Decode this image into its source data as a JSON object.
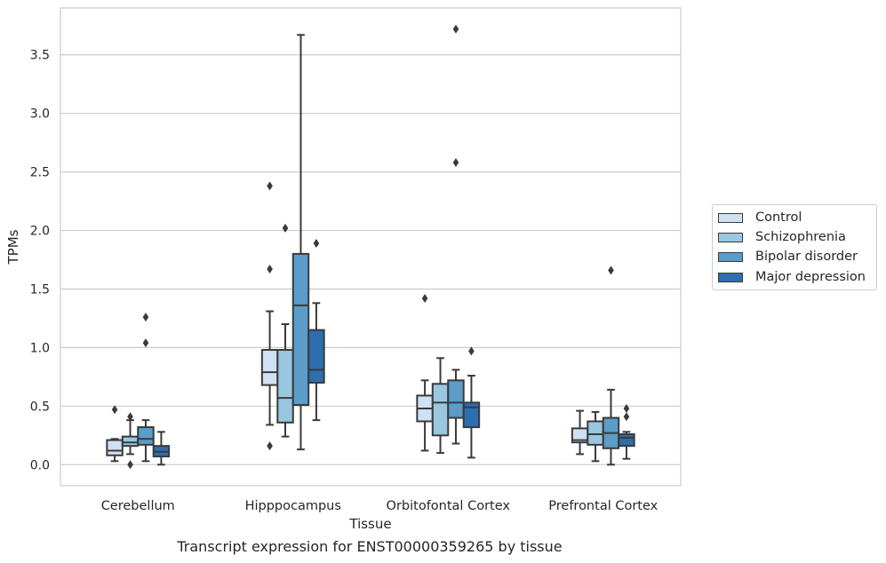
{
  "caption": "Transcript expression for ENST00000359265 by tissue",
  "chart_data": {
    "type": "box",
    "xlabel": "Tissue",
    "ylabel": "TPMs",
    "ylim": [
      -0.18,
      3.9
    ],
    "yticks": [
      "0.0",
      "0.5",
      "1.0",
      "1.5",
      "2.0",
      "2.5",
      "3.0",
      "3.5"
    ],
    "grid": "horizontal",
    "legend_placement": "outside-right",
    "categories": [
      "Cerebellum",
      "Hipppocampus",
      "Orbitofontal Cortex",
      "Prefrontal Cortex"
    ],
    "series": [
      {
        "name": "Control",
        "color": "#cfe1f2",
        "boxes": [
          {
            "whisker_low": 0.03,
            "q1": 0.08,
            "median": 0.12,
            "q3": 0.21,
            "whisker_high": 0.22,
            "outliers": [
              0.47
            ]
          },
          {
            "whisker_low": 0.34,
            "q1": 0.68,
            "median": 0.79,
            "q3": 0.98,
            "whisker_high": 1.31,
            "outliers": [
              0.16,
              1.67,
              2.38
            ]
          },
          {
            "whisker_low": 0.12,
            "q1": 0.37,
            "median": 0.48,
            "q3": 0.59,
            "whisker_high": 0.72,
            "outliers": [
              1.42
            ]
          },
          {
            "whisker_low": 0.09,
            "q1": 0.19,
            "median": 0.21,
            "q3": 0.31,
            "whisker_high": 0.46,
            "outliers": []
          }
        ]
      },
      {
        "name": "Schizophrenia",
        "color": "#9ac7e0",
        "boxes": [
          {
            "whisker_low": 0.09,
            "q1": 0.16,
            "median": 0.19,
            "q3": 0.24,
            "whisker_high": 0.38,
            "outliers": [
              0.0,
              0.41
            ]
          },
          {
            "whisker_low": 0.24,
            "q1": 0.36,
            "median": 0.57,
            "q3": 0.98,
            "whisker_high": 1.2,
            "outliers": [
              2.02
            ]
          },
          {
            "whisker_low": 0.1,
            "q1": 0.25,
            "median": 0.53,
            "q3": 0.69,
            "whisker_high": 0.91,
            "outliers": []
          },
          {
            "whisker_low": 0.03,
            "q1": 0.17,
            "median": 0.26,
            "q3": 0.37,
            "whisker_high": 0.45,
            "outliers": []
          }
        ]
      },
      {
        "name": "Bipolar disorder",
        "color": "#5b9cc9",
        "boxes": [
          {
            "whisker_low": 0.03,
            "q1": 0.17,
            "median": 0.22,
            "q3": 0.32,
            "whisker_high": 0.38,
            "outliers": [
              1.04,
              1.26
            ]
          },
          {
            "whisker_low": 0.13,
            "q1": 0.51,
            "median": 1.36,
            "q3": 1.8,
            "whisker_high": 3.67,
            "outliers": []
          },
          {
            "whisker_low": 0.18,
            "q1": 0.4,
            "median": 0.53,
            "q3": 0.72,
            "whisker_high": 0.81,
            "outliers": [
              2.58,
              3.72
            ]
          },
          {
            "whisker_low": 0.0,
            "q1": 0.14,
            "median": 0.27,
            "q3": 0.4,
            "whisker_high": 0.64,
            "outliers": [
              1.66
            ]
          }
        ]
      },
      {
        "name": "Major depression",
        "color": "#2c6eae",
        "boxes": [
          {
            "whisker_low": 0.0,
            "q1": 0.07,
            "median": 0.11,
            "q3": 0.16,
            "whisker_high": 0.28,
            "outliers": []
          },
          {
            "whisker_low": 0.38,
            "q1": 0.7,
            "median": 0.81,
            "q3": 1.15,
            "whisker_high": 1.38,
            "outliers": [
              1.89
            ]
          },
          {
            "whisker_low": 0.06,
            "q1": 0.32,
            "median": 0.49,
            "q3": 0.53,
            "whisker_high": 0.76,
            "outliers": [
              0.97
            ]
          },
          {
            "whisker_low": 0.05,
            "q1": 0.16,
            "median": 0.23,
            "q3": 0.26,
            "whisker_high": 0.28,
            "outliers": [
              0.41,
              0.48
            ]
          }
        ]
      }
    ]
  }
}
